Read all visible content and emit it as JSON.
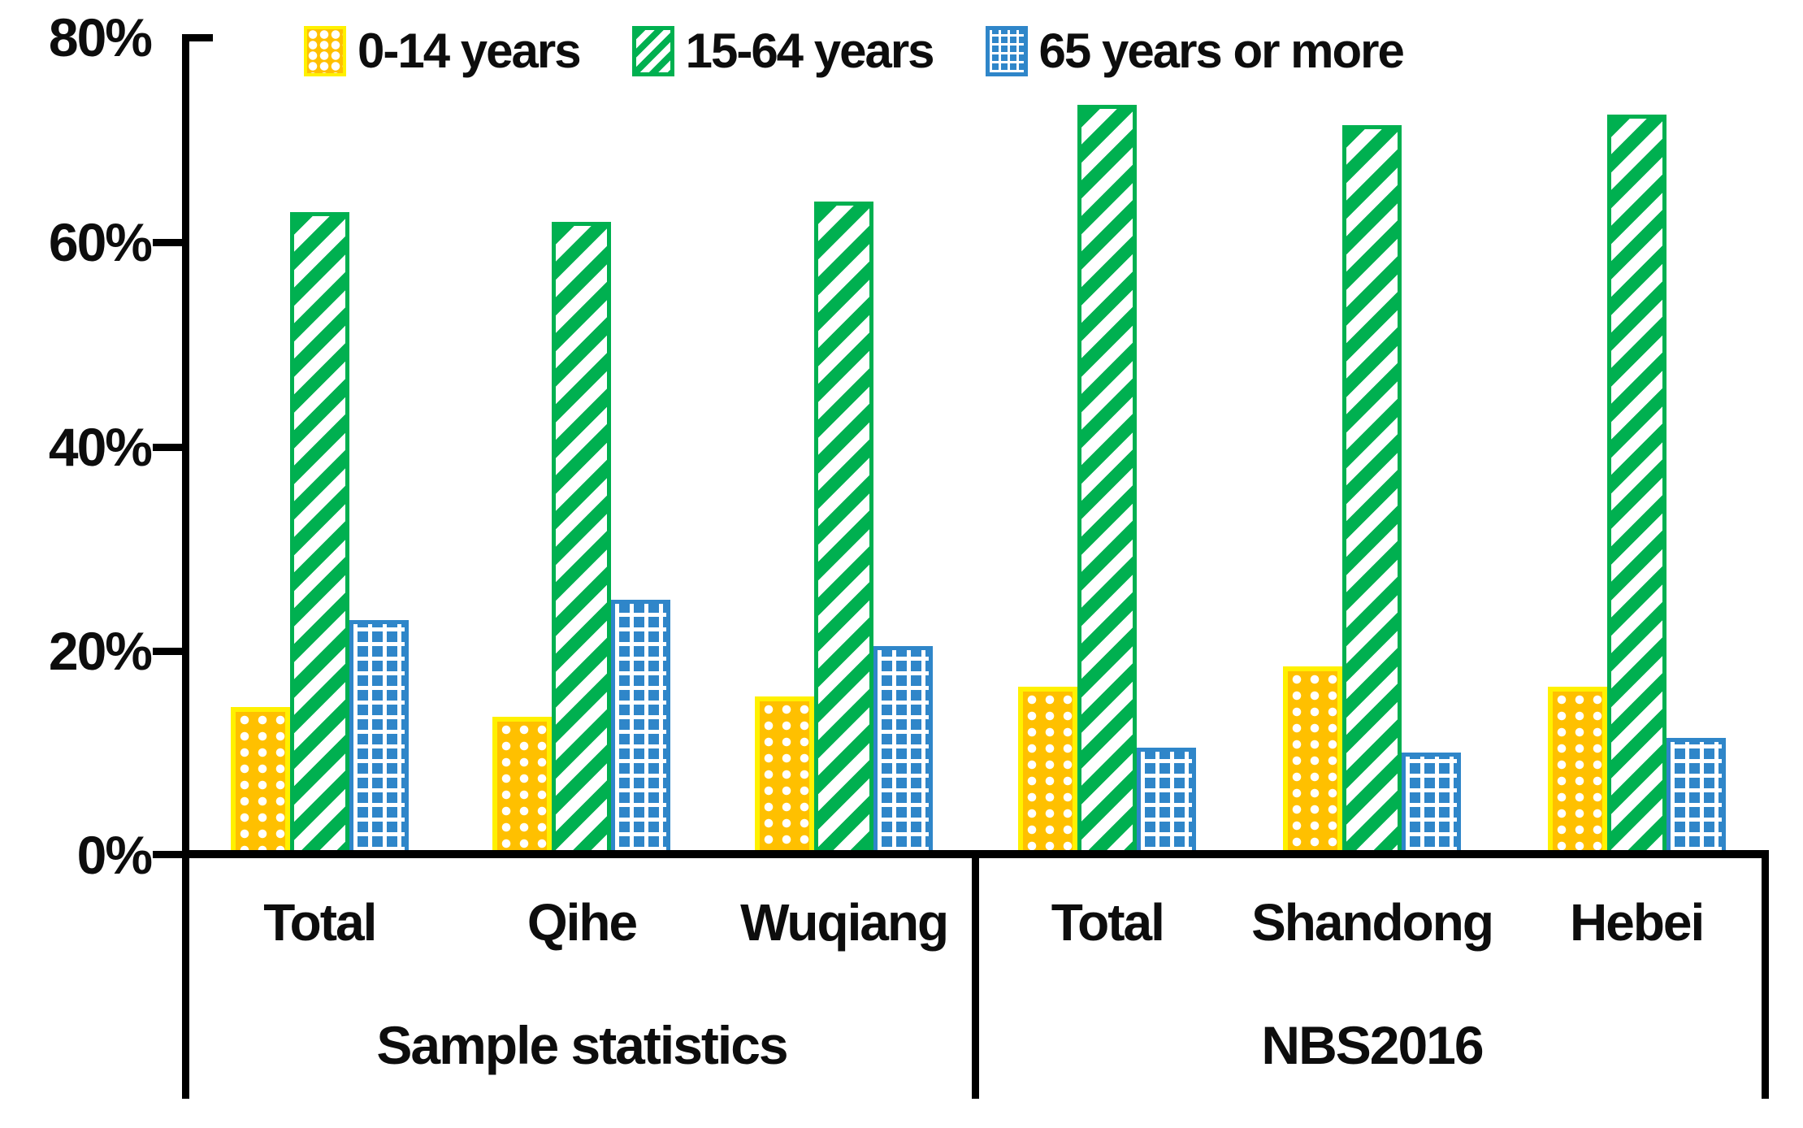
{
  "chart_data": {
    "type": "bar",
    "title": "",
    "xlabel": "",
    "ylabel": "",
    "ylim": [
      0,
      80
    ],
    "grid": false,
    "legend_position": "top",
    "yticks": [
      "80%",
      "60%",
      "40%",
      "20%",
      "0%"
    ],
    "series": [
      {
        "name": "0-14 years",
        "pattern": "dots",
        "color": "#FFC000",
        "border": "#FFF100"
      },
      {
        "name": "15-64 years",
        "pattern": "diagonal",
        "color": "#00B050",
        "border": "#00B050"
      },
      {
        "name": "65 years or more",
        "pattern": "grid",
        "color": "#2F86C9",
        "border": "#2F86C9"
      }
    ],
    "sections": [
      {
        "label": "Sample statistics",
        "groups": [
          {
            "label": "Total",
            "values": [
              14.5,
              63,
              23
            ]
          },
          {
            "label": "Qihe",
            "values": [
              13.5,
              62,
              25
            ]
          },
          {
            "label": "Wuqiang",
            "values": [
              15.5,
              64,
              20.5
            ]
          }
        ]
      },
      {
        "label": "NBS2016",
        "groups": [
          {
            "label": "Total",
            "values": [
              16.5,
              73.5,
              10.5
            ]
          },
          {
            "label": "Shandong",
            "values": [
              18.5,
              71.5,
              10
            ]
          },
          {
            "label": "Hebei",
            "values": [
              16.5,
              72.5,
              11.5
            ]
          }
        ]
      }
    ],
    "axis_color": "#000000"
  }
}
